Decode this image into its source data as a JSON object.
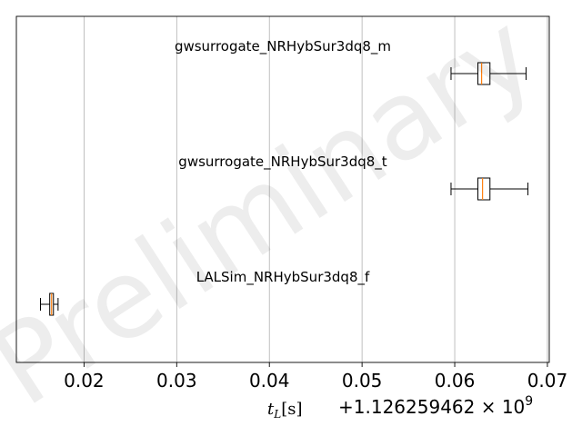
{
  "chart_data": {
    "type": "boxplot",
    "orientation": "horizontal",
    "xlabel": "t_L[s]",
    "xlabel_main": "t",
    "xlabel_sub": "L",
    "xlabel_unit": "[s]",
    "offset_text": "+1.126259462 × 10",
    "offset_exp": "9",
    "xlim": [
      0.0127,
      0.0702
    ],
    "xticks": [
      0.02,
      0.03,
      0.04,
      0.05,
      0.06,
      0.07
    ],
    "xtick_labels": [
      "0.02",
      "0.03",
      "0.04",
      "0.05",
      "0.06",
      "0.07"
    ],
    "grid": "x",
    "series": [
      {
        "name": "gwsurrogate_NRHybSur3dq8_m",
        "whislo": 0.0596,
        "q1": 0.0625,
        "med": 0.0629,
        "q3": 0.0638,
        "whishi": 0.0677
      },
      {
        "name": "gwsurrogate_NRHybSur3dq8_t",
        "whislo": 0.0596,
        "q1": 0.0625,
        "med": 0.063,
        "q3": 0.0638,
        "whishi": 0.0679
      },
      {
        "name": "LALSim_NRHybSur3dq8_f",
        "whislo": 0.0153,
        "q1": 0.0163,
        "med": 0.0165,
        "q3": 0.0167,
        "whishi": 0.0172
      }
    ],
    "colors": {
      "median": "#ff7f0e",
      "box": "#000000",
      "grid": "#b0b0b0"
    }
  },
  "watermark": "Preliminary"
}
